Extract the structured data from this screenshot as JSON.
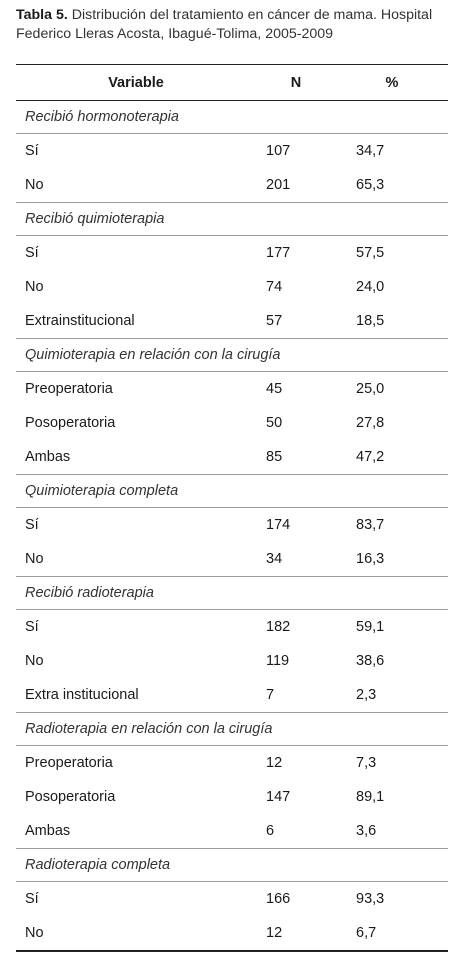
{
  "caption": {
    "label": "Tabla 5.",
    "text": " Distribución del tratamiento en cáncer de mama. Hospital Federico Lleras Acosta, Ibagué-Tolima, 2005-2009"
  },
  "table": {
    "headers": [
      "Variable",
      "N",
      "%"
    ],
    "sections": [
      {
        "title": "Recibió hormonoterapia",
        "rows": [
          [
            "Sí",
            "107",
            "34,7"
          ],
          [
            "No",
            "201",
            "65,3"
          ]
        ]
      },
      {
        "title": "Recibió quimioterapia",
        "rows": [
          [
            "Sí",
            "177",
            "57,5"
          ],
          [
            "No",
            "74",
            "24,0"
          ],
          [
            "Extrainstitucional",
            "57",
            "18,5"
          ]
        ]
      },
      {
        "title": "Quimioterapia en relación con la cirugía",
        "rows": [
          [
            "Preoperatoria",
            "45",
            "25,0"
          ],
          [
            "Posoperatoria",
            "50",
            "27,8"
          ],
          [
            "Ambas",
            "85",
            "47,2"
          ]
        ]
      },
      {
        "title": "Quimioterapia completa",
        "rows": [
          [
            "Sí",
            "174",
            "83,7"
          ],
          [
            "No",
            "34",
            "16,3"
          ]
        ]
      },
      {
        "title": "Recibió radioterapia",
        "rows": [
          [
            "Sí",
            "182",
            "59,1"
          ],
          [
            "No",
            "119",
            "38,6"
          ],
          [
            "Extra institucional",
            "7",
            "2,3"
          ]
        ]
      },
      {
        "title": "Radioterapia en relación con la cirugía",
        "rows": [
          [
            "Preoperatoria",
            "12",
            "7,3"
          ],
          [
            "Posoperatoria",
            "147",
            "89,1"
          ],
          [
            "Ambas",
            "6",
            "3,6"
          ]
        ]
      },
      {
        "title": "Radioterapia completa",
        "rows": [
          [
            "Sí",
            "166",
            "93,3"
          ],
          [
            "No",
            "12",
            "6,7"
          ]
        ]
      }
    ]
  }
}
